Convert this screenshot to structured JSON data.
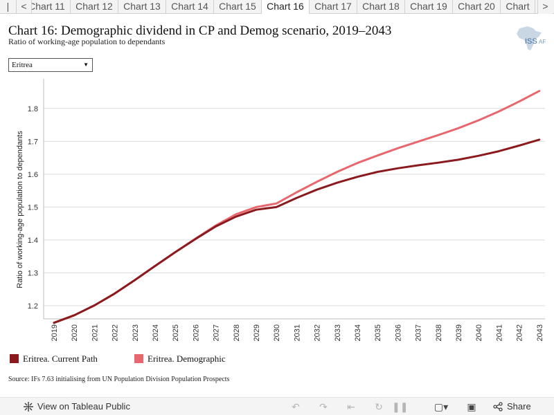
{
  "tabs": {
    "items": [
      "Chart 11",
      "Chart 12",
      "Chart 13",
      "Chart 14",
      "Chart 15",
      "Chart 16",
      "Chart 17",
      "Chart 18",
      "Chart 19",
      "Chart 20",
      "Chart"
    ],
    "active_index": 5,
    "first_label": "|<",
    "prev_label": "<",
    "next_label": ">"
  },
  "header": {
    "title": "Chart 16: Demographic dividend in CP and Demog scenario, 2019–2043",
    "subtitle": "Ratio of working-age population to dependants",
    "logo_text": "ISS",
    "logo_text2": "AF"
  },
  "filter": {
    "selected": "Eritrea",
    "arrow": "▼"
  },
  "chart_data": {
    "type": "line",
    "xlabel": "",
    "ylabel": "Ratio of working-age population to dependants",
    "x": [
      2019,
      2020,
      2021,
      2022,
      2023,
      2024,
      2025,
      2026,
      2027,
      2028,
      2029,
      2030,
      2031,
      2032,
      2033,
      2034,
      2035,
      2036,
      2037,
      2038,
      2039,
      2040,
      2041,
      2042,
      2043
    ],
    "yticks": [
      1.2,
      1.3,
      1.4,
      1.5,
      1.6,
      1.7,
      1.8
    ],
    "ylim": [
      1.16,
      1.89
    ],
    "grid": true,
    "legend_position": "bottom-left",
    "series": [
      {
        "name": "Eritrea. Current Path",
        "color": "#8b1a1e",
        "values": [
          1.148,
          1.171,
          1.201,
          1.237,
          1.278,
          1.321,
          1.363,
          1.403,
          1.441,
          1.471,
          1.492,
          1.5,
          1.528,
          1.553,
          1.574,
          1.592,
          1.607,
          1.618,
          1.627,
          1.635,
          1.644,
          1.656,
          1.67,
          1.687,
          1.705
        ]
      },
      {
        "name": "Eritrea. Demographic",
        "color": "#e8676e",
        "values": [
          1.148,
          1.171,
          1.201,
          1.237,
          1.278,
          1.321,
          1.363,
          1.404,
          1.444,
          1.478,
          1.5,
          1.511,
          1.545,
          1.577,
          1.607,
          1.634,
          1.657,
          1.679,
          1.699,
          1.719,
          1.74,
          1.764,
          1.791,
          1.821,
          1.853
        ]
      }
    ]
  },
  "source": "Source: IFs 7.63 initialising from UN Population Division Population Prospects",
  "footer": {
    "view_label": "View on Tableau Public",
    "share_label": "Share"
  }
}
